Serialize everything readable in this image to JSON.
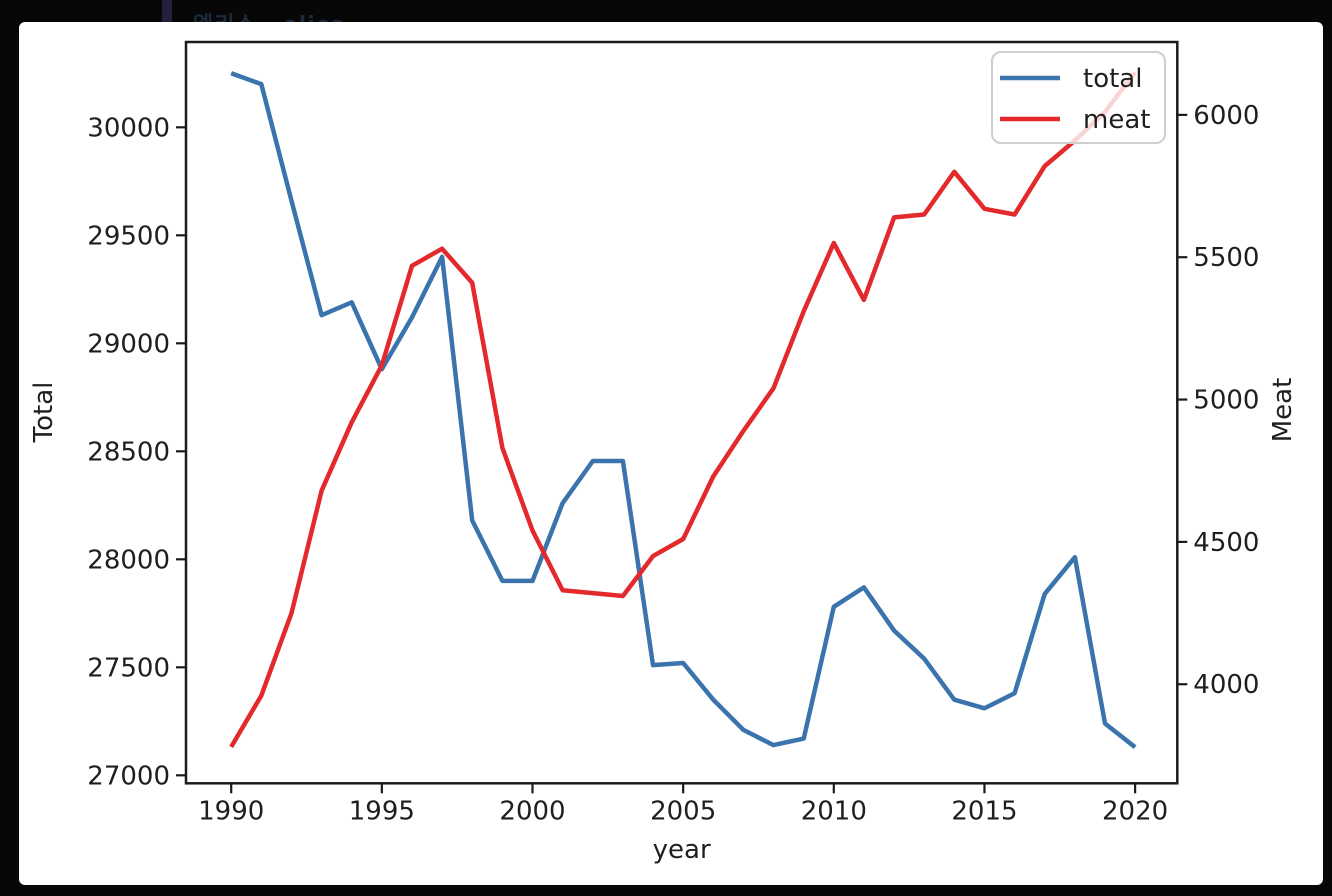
{
  "page": {
    "background": "#070707",
    "header": {
      "korean": "엘리스",
      "latin": "elice"
    }
  },
  "chart_data": {
    "type": "line",
    "x": [
      1990,
      1991,
      1992,
      1993,
      1994,
      1995,
      1996,
      1997,
      1998,
      1999,
      2000,
      2001,
      2002,
      2003,
      2004,
      2005,
      2006,
      2007,
      2008,
      2009,
      2010,
      2011,
      2012,
      2013,
      2014,
      2015,
      2016,
      2017,
      2018,
      2019,
      2020
    ],
    "series": [
      {
        "name": "total",
        "axis": "left",
        "color": "#3b74ad",
        "values": [
          30250,
          30200,
          29660,
          29130,
          29190,
          28880,
          29120,
          29400,
          28180,
          27900,
          27900,
          28260,
          28455,
          28455,
          27510,
          27520,
          27350,
          27210,
          27140,
          27170,
          27780,
          27870,
          27670,
          27540,
          27350,
          27310,
          27380,
          27840,
          28010,
          27240,
          27130
        ]
      },
      {
        "name": "meat",
        "axis": "right",
        "color": "#e3292b",
        "values": [
          3780,
          3960,
          4250,
          4680,
          4920,
          5120,
          5470,
          5530,
          5410,
          4830,
          4540,
          4330,
          4320,
          4310,
          4450,
          4510,
          4730,
          4890,
          5040,
          5310,
          5550,
          5350,
          5640,
          5650,
          5800,
          5670,
          5650,
          5820,
          5910,
          6010,
          6150
        ]
      }
    ],
    "xlabel": "year",
    "ylabel_left": "Total",
    "ylabel_right": "Meat",
    "x_ticks": [
      1990,
      1995,
      2000,
      2005,
      2010,
      2015,
      2020
    ],
    "y_ticks_left": [
      27000,
      27500,
      28000,
      28500,
      29000,
      29500,
      30000
    ],
    "y_ticks_right": [
      4000,
      4500,
      5000,
      5500,
      6000
    ],
    "xlim": [
      1988.5,
      2021.4
    ],
    "ylim_left": [
      26963,
      30395
    ],
    "ylim_right": [
      3652,
      6256
    ],
    "grid": false,
    "legend": {
      "position": "upper right",
      "entries": [
        "total",
        "meat"
      ]
    },
    "frame_color": "#1b1b1b"
  }
}
